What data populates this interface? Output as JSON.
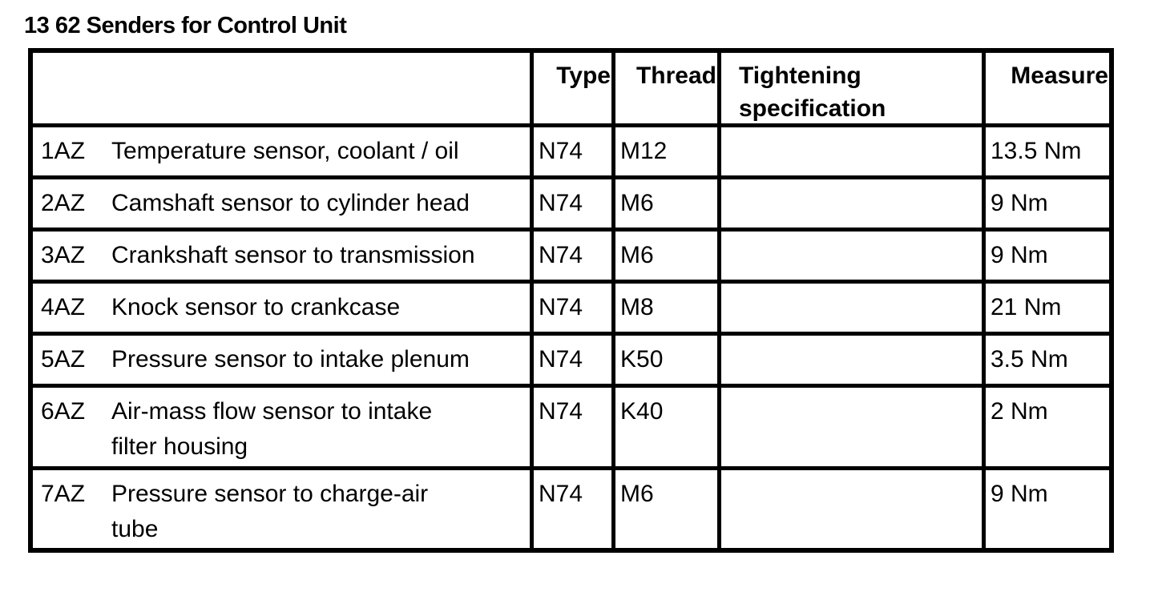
{
  "page_title": "13 62 Senders for Control Unit",
  "colors": {
    "text": "#000000",
    "border": "#000000",
    "background": "#ffffff"
  },
  "table": {
    "headers": {
      "item": "",
      "type": "Type",
      "thread": "Thread",
      "tightening": "Tightening\nspecification",
      "measure": "Measure"
    },
    "rows": [
      {
        "code": "1AZ",
        "description": "Temperature sensor, coolant / oil",
        "type": "N74",
        "thread": "M12",
        "tightening": "",
        "measure": "13.5 Nm"
      },
      {
        "code": "2AZ",
        "description": "Camshaft sensor to cylinder head",
        "type": "N74",
        "thread": "M6",
        "tightening": "",
        "measure": "9 Nm"
      },
      {
        "code": "3AZ",
        "description": "Crankshaft sensor to transmission",
        "type": "N74",
        "thread": "M6",
        "tightening": "",
        "measure": "9 Nm"
      },
      {
        "code": "4AZ",
        "description": "Knock sensor to crankcase",
        "type": "N74",
        "thread": "M8",
        "tightening": "",
        "measure": "21 Nm"
      },
      {
        "code": "5AZ",
        "description": "Pressure sensor to intake plenum",
        "type": "N74",
        "thread": "K50",
        "tightening": "",
        "measure": "3.5 Nm"
      },
      {
        "code": "6AZ",
        "description": "Air-mass flow sensor to intake\nfilter housing",
        "type": "N74",
        "thread": "K40",
        "tightening": "",
        "measure": "2 Nm"
      },
      {
        "code": "7AZ",
        "description": "Pressure sensor to charge-air\ntube",
        "type": "N74",
        "thread": "M6",
        "tightening": "",
        "measure": "9 Nm"
      }
    ]
  }
}
